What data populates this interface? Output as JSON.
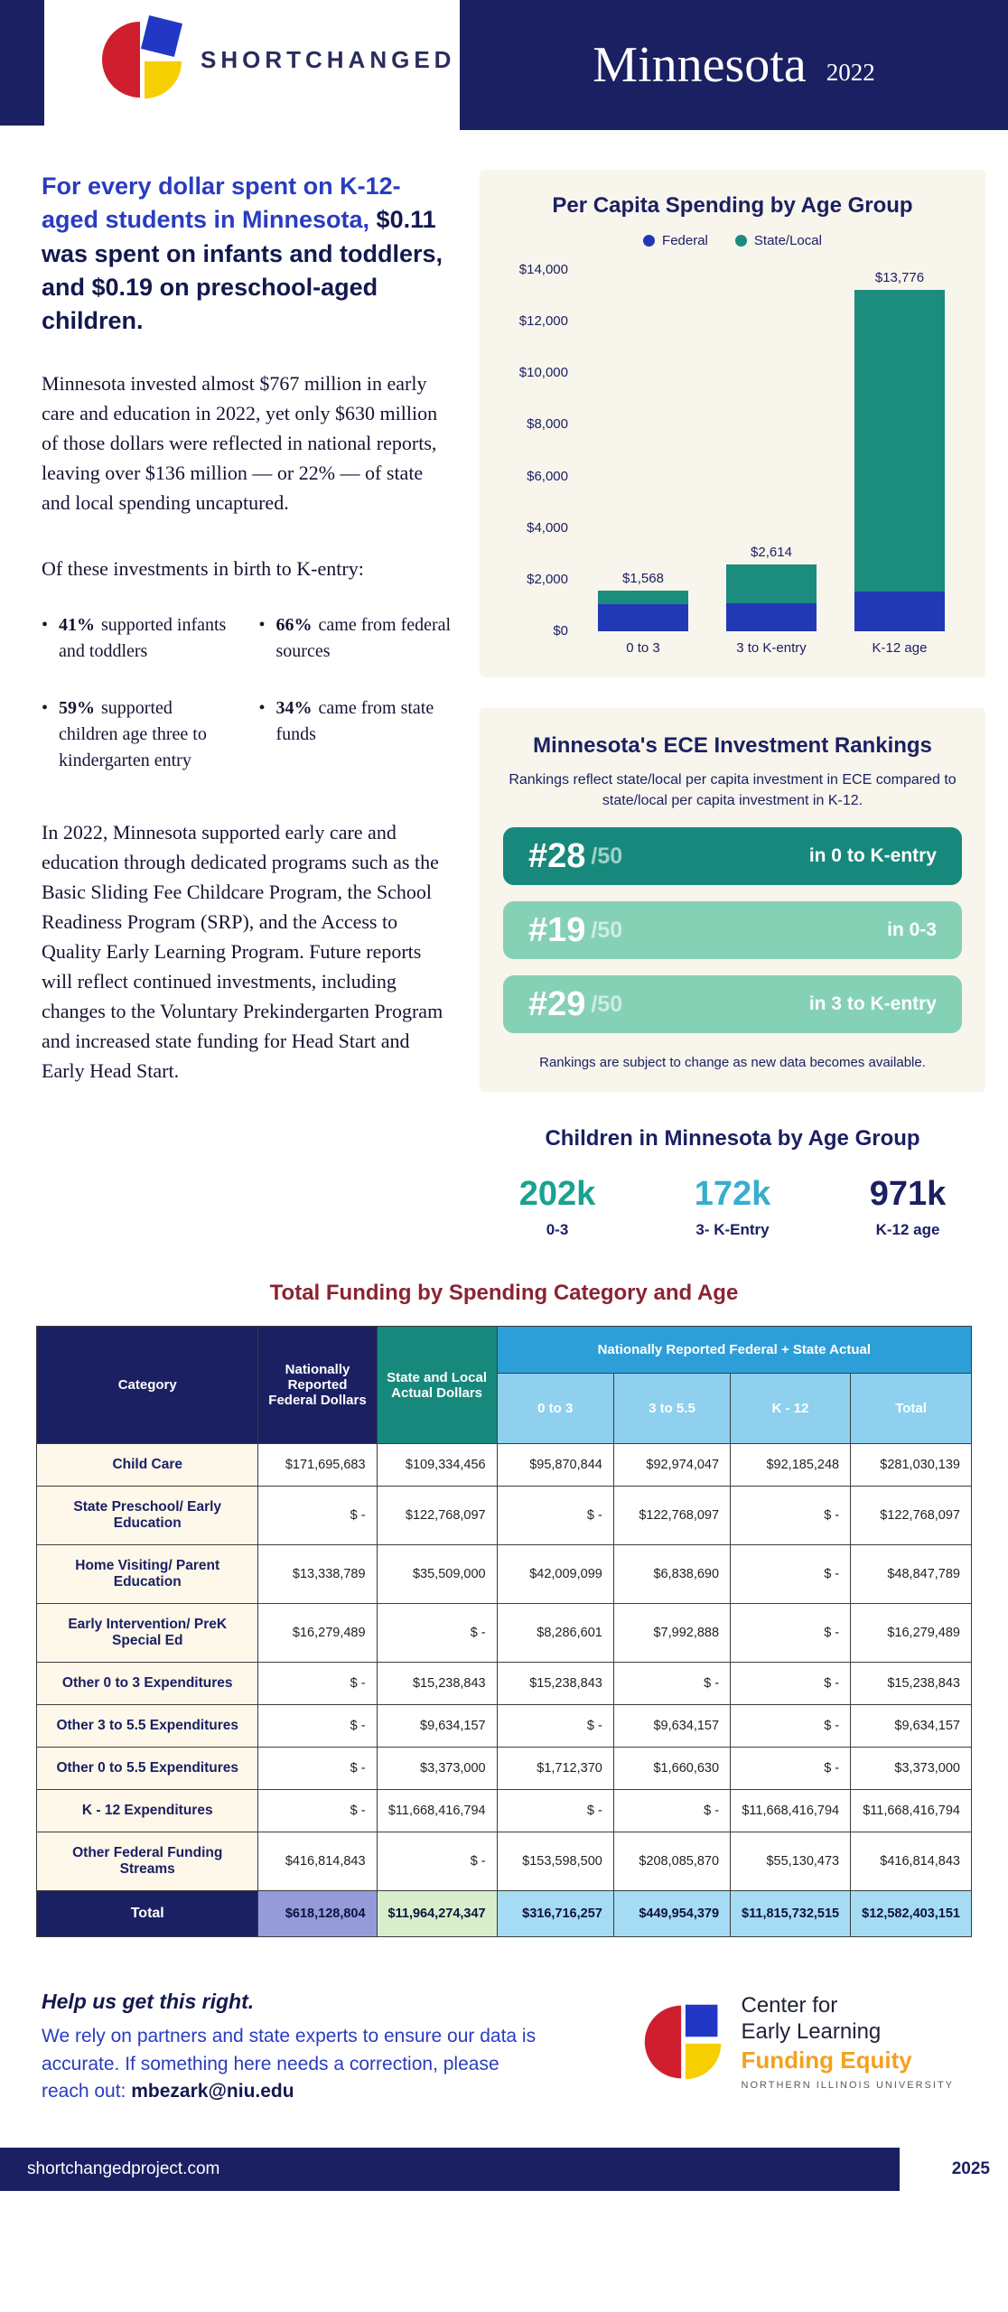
{
  "header": {
    "brand": "SHORTCHANGED",
    "state": "Minnesota",
    "year": "2022"
  },
  "intro": {
    "headline_part1": "For every dollar spent on K-12-aged students in Minnesota, ",
    "headline_part2": "$0.11 was spent on infants and toddlers, and $0.19 on preschool-aged children.",
    "paragraph1": "Minnesota invested almost $767 million in early care and education in 2022, yet only $630 million of those dollars were reflected in national reports, leaving over $136 million — or 22% — of state and local spending uncaptured.",
    "paragraph2_intro": "Of these investments in birth to K-entry:",
    "bullets": [
      {
        "stat": "41%",
        "text": "supported infants and toddlers"
      },
      {
        "stat": "66%",
        "text": "came from federal sources"
      },
      {
        "stat": "59%",
        "text": "supported children age three to kindergarten entry"
      },
      {
        "stat": "34%",
        "text": "came from state funds"
      }
    ],
    "paragraph3": "In 2022, Minnesota supported early care and education through dedicated programs such as the Basic Sliding Fee Childcare Program, the School Readiness Program (SRP), and the Access to Quality Early Learning Program. Future reports will reflect continued investments, including changes to the Voluntary Prekindergarten Program and increased state funding for Head Start and Early Head Start."
  },
  "chart_data": {
    "type": "bar",
    "stacked": true,
    "title": "Per Capita Spending by Age Group",
    "categories": [
      "0 to 3",
      "3 to K-entry",
      "K-12 age"
    ],
    "series": [
      {
        "name": "Federal",
        "color": "#2239b5",
        "values": [
          1050,
          1100,
          1600
        ]
      },
      {
        "name": "State/Local",
        "color": "#1b8c7d",
        "values": [
          518,
          1514,
          12176
        ]
      }
    ],
    "totals": [
      1568,
      2614,
      13776
    ],
    "total_labels": [
      "$1,568",
      "$2,614",
      "$13,776"
    ],
    "ylim": [
      0,
      14000
    ],
    "y_ticks": [
      "$14,000",
      "$12,000",
      "$10,000",
      "$8,000",
      "$6,000",
      "$4,000",
      "$2,000",
      "$0"
    ],
    "legend_position": "top",
    "grid": false
  },
  "rankings": {
    "title": "Minnesota's ECE Investment Rankings",
    "subtitle": "Rankings reflect state/local per capita investment in ECE compared to state/local per capita investment in K-12.",
    "items": [
      {
        "rank": "#28",
        "denom": "/50",
        "label": "in 0 to K-entry",
        "color": "#17897c"
      },
      {
        "rank": "#19",
        "denom": "/50",
        "label": "in 0-3",
        "color": "#85d1b6"
      },
      {
        "rank": "#29",
        "denom": "/50",
        "label": "in 3 to K-entry",
        "color": "#85d1b6"
      }
    ],
    "note": "Rankings are subject to change as new data becomes available."
  },
  "children": {
    "title": "Children in Minnesota by Age Group",
    "groups": [
      {
        "count": "202k",
        "label": "0-3",
        "color": "#18a390"
      },
      {
        "count": "172k",
        "label": "3- K-Entry",
        "color": "#38aecd"
      },
      {
        "count": "971k",
        "label": "K-12 age",
        "color": "#1b2063"
      }
    ]
  },
  "table": {
    "title": "Total Funding by Spending Category and Age",
    "headers": {
      "category": "Category",
      "federal": "Nationally Reported Federal Dollars",
      "state_local": "State and Local Actual Dollars",
      "combined": "Nationally Reported Federal + State Actual",
      "sub": [
        "0 to 3",
        "3 to 5.5",
        "K - 12",
        "Total"
      ]
    },
    "rows": [
      {
        "category": "Child Care",
        "values": [
          "$171,695,683",
          "$109,334,456",
          "$95,870,844",
          "$92,974,047",
          "$92,185,248",
          "$281,030,139"
        ]
      },
      {
        "category": "State Preschool/ Early Education",
        "values": [
          "$ -",
          "$122,768,097",
          "$ -",
          "$122,768,097",
          "$ -",
          "$122,768,097"
        ]
      },
      {
        "category": "Home Visiting/ Parent Education",
        "values": [
          "$13,338,789",
          "$35,509,000",
          "$42,009,099",
          "$6,838,690",
          "$ -",
          "$48,847,789"
        ]
      },
      {
        "category": "Early Intervention/ PreK Special Ed",
        "values": [
          "$16,279,489",
          "$ -",
          "$8,286,601",
          "$7,992,888",
          "$ -",
          "$16,279,489"
        ]
      },
      {
        "category": "Other 0 to 3 Expenditures",
        "values": [
          "$ -",
          "$15,238,843",
          "$15,238,843",
          "$ -",
          "$ -",
          "$15,238,843"
        ]
      },
      {
        "category": "Other 3 to 5.5 Expenditures",
        "values": [
          "$ -",
          "$9,634,157",
          "$ -",
          "$9,634,157",
          "$ -",
          "$9,634,157"
        ]
      },
      {
        "category": "Other 0 to 5.5 Expenditures",
        "values": [
          "$ -",
          "$3,373,000",
          "$1,712,370",
          "$1,660,630",
          "$ -",
          "$3,373,000"
        ]
      },
      {
        "category": "K - 12 Expenditures",
        "values": [
          "$ -",
          "$11,668,416,794",
          "$ -",
          "$ -",
          "$11,668,416,794",
          "$11,668,416,794"
        ]
      },
      {
        "category": "Other Federal Funding Streams",
        "values": [
          "$416,814,843",
          "$ -",
          "$153,598,500",
          "$208,085,870",
          "$55,130,473",
          "$416,814,843"
        ]
      }
    ],
    "total_row": {
      "label": "Total",
      "values": [
        "$618,128,804",
        "$11,964,274,347",
        "$316,716,257",
        "$449,954,379",
        "$11,815,732,515",
        "$12,582,403,151"
      ]
    }
  },
  "footer": {
    "help_title": "Help us get this right.",
    "help_text": "We rely on partners and state experts to ensure our data is accurate. If something here needs a correction, please reach out: ",
    "help_email": "mbezark@niu.edu",
    "logo_line1": "Center for",
    "logo_line2": "Early Learning",
    "logo_line3": "Funding Equity",
    "logo_line4": "NORTHERN ILLINOIS UNIVERSITY",
    "site": "shortchangedproject.com",
    "year": "2025"
  },
  "colors": {
    "navy": "#1b2063",
    "teal": "#17897c",
    "mint": "#85d1b6",
    "federal_blue": "#2239b5",
    "table_blue": "#2e9ed8",
    "table_light_blue": "#8fd0ef",
    "card_bg": "#f8f5ec",
    "orange": "#f5a01e",
    "maroon_title": "#8a2432"
  }
}
